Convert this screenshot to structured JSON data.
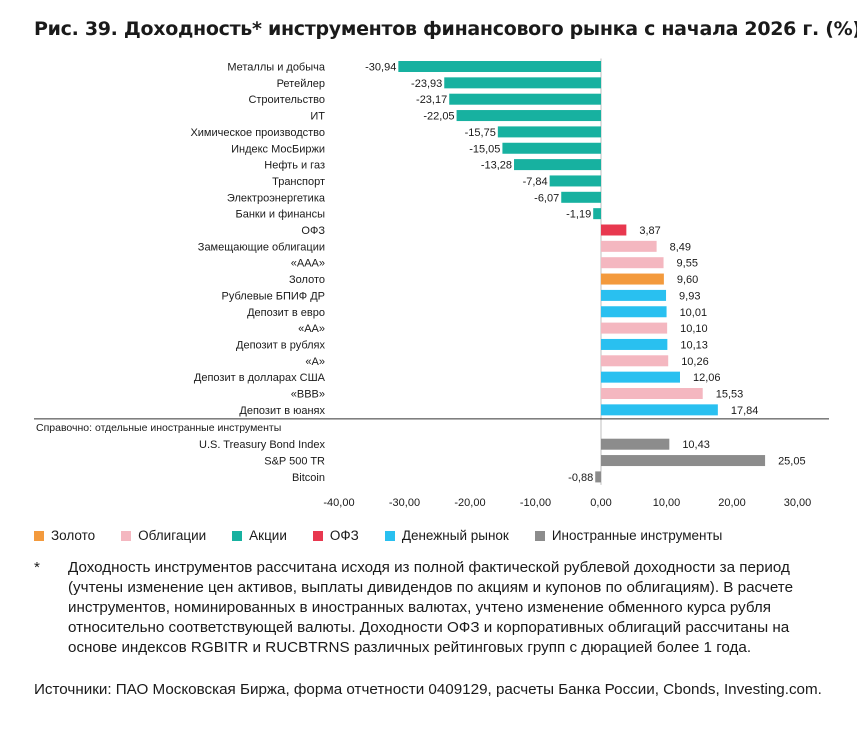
{
  "title": "Рис. 39. Доходность* инструментов финансового рынка с начала 2026 г. (%)",
  "colors": {
    "gold": "#F39A3D",
    "bonds": "#F4B7C0",
    "stocks": "#17B1A0",
    "ofz": "#E8384F",
    "money": "#29C0F0",
    "foreign": "#8C8C8C"
  },
  "legend": [
    {
      "label": "Золото",
      "color_key": "gold"
    },
    {
      "label": "Облигации",
      "color_key": "bonds"
    },
    {
      "label": "Акции",
      "color_key": "stocks"
    },
    {
      "label": "ОФЗ",
      "color_key": "ofz"
    },
    {
      "label": "Денежный рынок",
      "color_key": "money"
    },
    {
      "label": "Иностранные инструменты",
      "color_key": "foreign"
    }
  ],
  "chart_data": {
    "type": "bar",
    "orientation": "horizontal",
    "xlim": [
      -40,
      30
    ],
    "xticks": [
      "-40,00",
      "-30,00",
      "-20,00",
      "-10,00",
      "0,00",
      "10,00",
      "20,00",
      "30,00"
    ],
    "xtick_values": [
      -40,
      -30,
      -20,
      -10,
      0,
      10,
      20,
      30
    ],
    "reference_label": "Справочно: отдельные иностранные инструменты",
    "bars": [
      {
        "label": "Металлы и добыча",
        "value": -30.94,
        "value_label": "-30,94",
        "group": "stocks"
      },
      {
        "label": "Ретейлер",
        "value": -23.93,
        "value_label": "-23,93",
        "group": "stocks"
      },
      {
        "label": "Строительство",
        "value": -23.17,
        "value_label": "-23,17",
        "group": "stocks"
      },
      {
        "label": "ИТ",
        "value": -22.05,
        "value_label": "-22,05",
        "group": "stocks"
      },
      {
        "label": "Химическое производство",
        "value": -15.75,
        "value_label": "-15,75",
        "group": "stocks"
      },
      {
        "label": "Индекс МосБиржи",
        "value": -15.05,
        "value_label": "-15,05",
        "group": "stocks"
      },
      {
        "label": "Нефть и газ",
        "value": -13.28,
        "value_label": "-13,28",
        "group": "stocks"
      },
      {
        "label": "Транспорт",
        "value": -7.84,
        "value_label": "-7,84",
        "group": "stocks"
      },
      {
        "label": "Электроэнергетика",
        "value": -6.07,
        "value_label": "-6,07",
        "group": "stocks"
      },
      {
        "label": "Банки и финансы",
        "value": -1.19,
        "value_label": "-1,19",
        "group": "stocks"
      },
      {
        "label": "ОФЗ",
        "value": 3.87,
        "value_label": "3,87",
        "group": "ofz"
      },
      {
        "label": "Замещающие облигации",
        "value": 8.49,
        "value_label": "8,49",
        "group": "bonds"
      },
      {
        "label": "«ААА»",
        "value": 9.55,
        "value_label": "9,55",
        "group": "bonds"
      },
      {
        "label": "Золото",
        "value": 9.6,
        "value_label": "9,60",
        "group": "gold"
      },
      {
        "label": "Рублевые БПИФ ДР",
        "value": 9.93,
        "value_label": "9,93",
        "group": "money"
      },
      {
        "label": "Депозит в евро",
        "value": 10.01,
        "value_label": "10,01",
        "group": "money"
      },
      {
        "label": "«АА»",
        "value": 10.1,
        "value_label": "10,10",
        "group": "bonds"
      },
      {
        "label": "Депозит в рублях",
        "value": 10.13,
        "value_label": "10,13",
        "group": "money"
      },
      {
        "label": "«А»",
        "value": 10.26,
        "value_label": "10,26",
        "group": "bonds"
      },
      {
        "label": "Депозит в долларах США",
        "value": 12.06,
        "value_label": "12,06",
        "group": "money"
      },
      {
        "label": "«ВВВ»",
        "value": 15.53,
        "value_label": "15,53",
        "group": "bonds"
      },
      {
        "label": "Депозит в юанях",
        "value": 17.84,
        "value_label": "17,84",
        "group": "money"
      },
      {
        "label": "U.S. Treasury Bond Index",
        "value": 10.43,
        "value_label": "10,43",
        "group": "foreign"
      },
      {
        "label": "S&P 500 TR",
        "value": 25.05,
        "value_label": "25,05",
        "group": "foreign"
      },
      {
        "label": "Bitcoin",
        "value": -0.88,
        "value_label": "-0,88",
        "group": "foreign"
      }
    ]
  },
  "note": {
    "marker": "*",
    "text": "Доходность инструментов рассчитана исходя из полной фактической рублевой доходности за период (учтены изменение цен активов, выплаты дивидендов по акциям и купонов по облигациям). В расчете инструментов, номинированных в иностранных валютах, учтено изменение обменного курса рубля относительно соответствующей валюты. Доходности ОФЗ и корпоративных облигаций рассчитаны на основе индексов RGBITR и RUCBTRNS различных рейтинговых групп с дюрацией более 1 года."
  },
  "source": "Источники: ПАО Московская Биржа, форма отчетности 0409129, расчеты Банка России, Cbonds, Investing.com."
}
